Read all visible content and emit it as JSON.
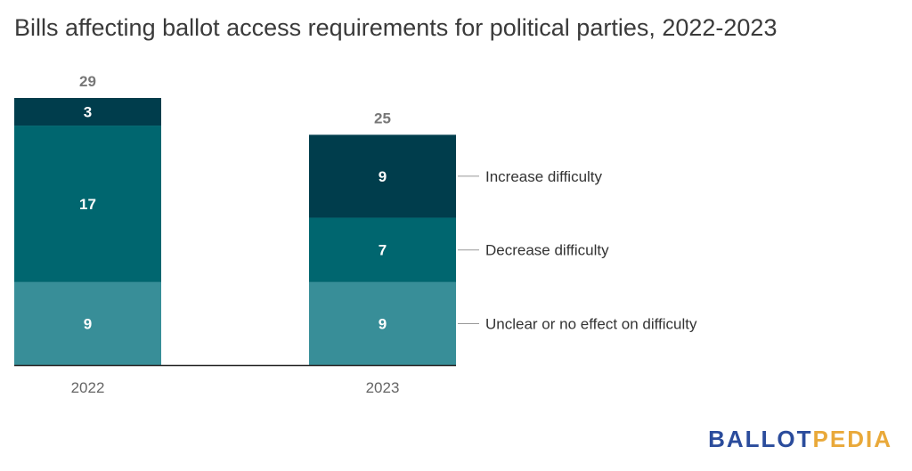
{
  "title": "Bills affecting ballot access requirements for political parties, 2022-2023",
  "logo": {
    "part1": "BALLOT",
    "part2": "PEDIA"
  },
  "chart_data": {
    "type": "bar",
    "stacked": true,
    "categories": [
      "2022",
      "2023"
    ],
    "series": [
      {
        "name": "Unclear or no effect on difficulty",
        "values": [
          9,
          9
        ],
        "color": "#388e98"
      },
      {
        "name": "Decrease difficulty",
        "values": [
          17,
          7
        ],
        "color": "#00666f"
      },
      {
        "name": "Increase difficulty",
        "values": [
          3,
          9
        ],
        "color": "#003d4c"
      }
    ],
    "totals": [
      29,
      25
    ],
    "legend": "right, labels next to last bar",
    "grid": false,
    "axis_color": "#222222"
  }
}
